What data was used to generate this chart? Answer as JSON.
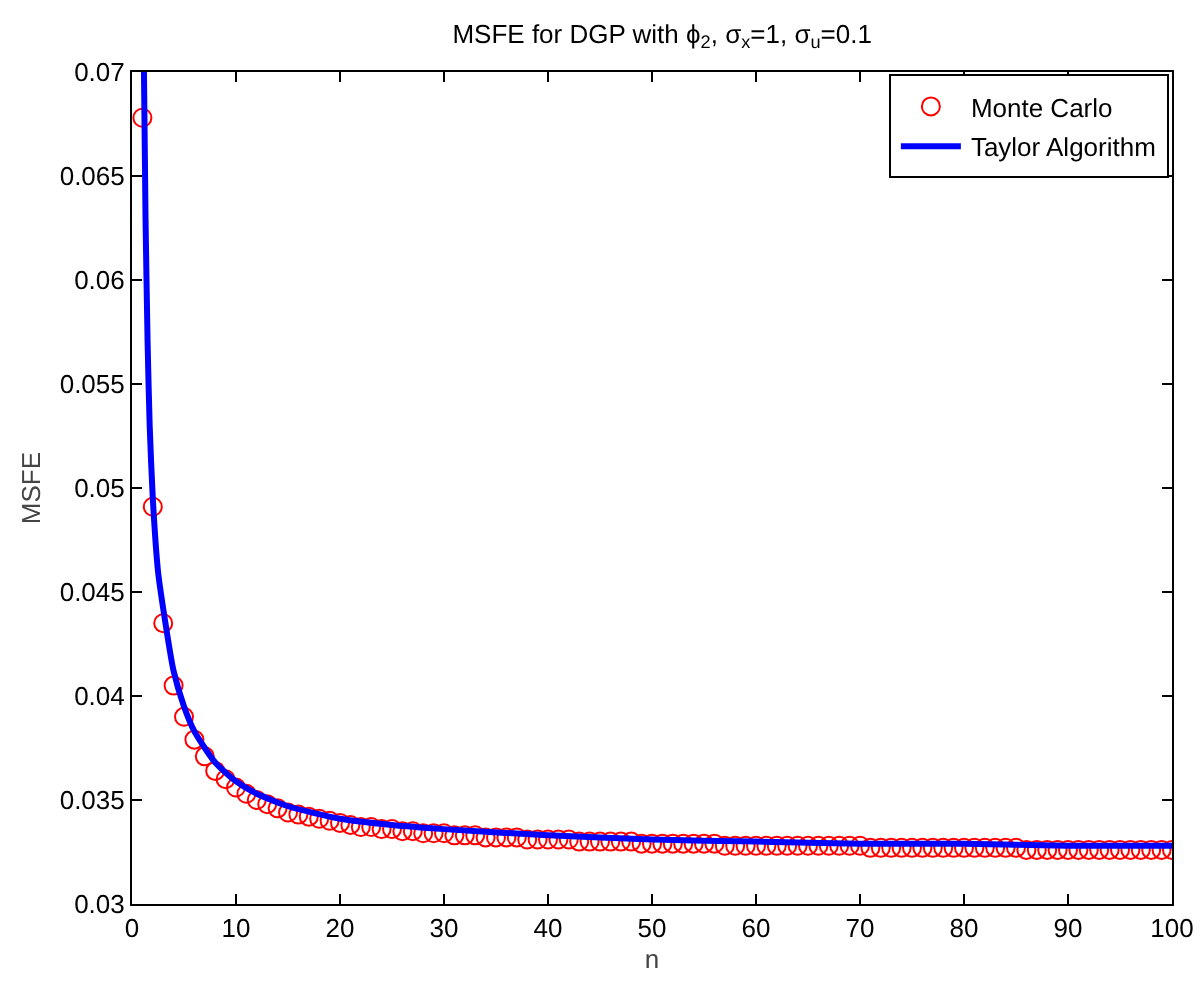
{
  "chart_data": {
    "type": "line",
    "title": "MSFE for DGP with ϕ$_{2}$, σ$_{x}$=1, σ$_{u}$=0.1",
    "xlabel": "n",
    "ylabel": "MSFE",
    "xlim": [
      0,
      100
    ],
    "xticks": [
      0,
      10,
      20,
      30,
      40,
      50,
      60,
      70,
      80,
      90,
      100
    ],
    "ylim": [
      0.03,
      0.07
    ],
    "yticks": [
      0.03,
      0.035,
      0.04,
      0.045,
      0.05,
      0.055,
      0.06,
      0.065,
      0.07
    ],
    "grid": false,
    "legend": "top right",
    "series": [
      {
        "name": "Monte Carlo",
        "type": "scatter",
        "marker": "circle",
        "color": "#ff0000",
        "x": [
          1,
          2,
          3,
          4,
          5,
          6,
          7,
          8,
          9,
          10,
          11,
          12,
          13,
          14,
          15,
          16,
          17,
          18,
          19,
          20,
          21,
          22,
          23,
          24,
          25,
          26,
          27,
          28,
          29,
          30,
          31,
          32,
          33,
          34,
          35,
          36,
          37,
          38,
          39,
          40,
          41,
          42,
          43,
          44,
          45,
          46,
          47,
          48,
          49,
          50,
          51,
          52,
          53,
          54,
          55,
          56,
          57,
          58,
          59,
          60,
          61,
          62,
          63,
          64,
          65,
          66,
          67,
          68,
          69,
          70,
          71,
          72,
          73,
          74,
          75,
          76,
          77,
          78,
          79,
          80,
          81,
          82,
          83,
          84,
          85,
          86,
          87,
          88,
          89,
          90,
          91,
          92,
          93,
          94,
          95,
          96,
          97,
          98,
          99,
          100
        ],
        "values": [
          0.0678,
          0.0491,
          0.0435,
          0.0405,
          0.039,
          0.0379,
          0.0371,
          0.0364,
          0.036,
          0.0356,
          0.0353,
          0.035,
          0.0348,
          0.0346,
          0.0344,
          0.0343,
          0.0342,
          0.0341,
          0.034,
          0.0339,
          0.0338,
          0.0337,
          0.0337,
          0.0336,
          0.0336,
          0.0335,
          0.0335,
          0.0334,
          0.0334,
          0.0334,
          0.0333,
          0.0333,
          0.0333,
          0.0332,
          0.0332,
          0.0332,
          0.0332,
          0.0331,
          0.0331,
          0.0331,
          0.0331,
          0.0331,
          0.033,
          0.033,
          0.033,
          0.033,
          0.033,
          0.033,
          0.0329,
          0.0329,
          0.0329,
          0.0329,
          0.0329,
          0.0329,
          0.0329,
          0.0329,
          0.0328,
          0.0328,
          0.0328,
          0.0328,
          0.0328,
          0.0328,
          0.0328,
          0.0328,
          0.0328,
          0.0328,
          0.0328,
          0.0328,
          0.0328,
          0.0328,
          0.0327,
          0.0327,
          0.0327,
          0.0327,
          0.0327,
          0.0327,
          0.0327,
          0.0327,
          0.0327,
          0.0327,
          0.0327,
          0.0327,
          0.0327,
          0.0327,
          0.0327,
          0.0326,
          0.0326,
          0.0326,
          0.0326,
          0.0326,
          0.0326,
          0.0326,
          0.0326,
          0.0326,
          0.0326,
          0.0326,
          0.0326,
          0.0326,
          0.0326,
          0.0326
        ]
      },
      {
        "name": "Taylor Algorithm",
        "type": "line",
        "marker": "none",
        "line_style": "solid",
        "color": "#0000ff",
        "x": [
          1.15,
          1.3,
          1.5,
          1.7,
          2,
          2.5,
          3,
          4,
          5,
          6,
          8,
          10,
          12,
          15,
          20,
          25,
          30,
          40,
          50,
          60,
          70,
          80,
          90,
          100
        ],
        "values": [
          0.07,
          0.063,
          0.057,
          0.053,
          0.0495,
          0.046,
          0.0442,
          0.0412,
          0.0395,
          0.0383,
          0.0368,
          0.0359,
          0.0353,
          0.0347,
          0.0341,
          0.0338,
          0.0336,
          0.0333,
          0.0331,
          0.033,
          0.0329,
          0.0329,
          0.0328,
          0.0328
        ]
      }
    ]
  }
}
